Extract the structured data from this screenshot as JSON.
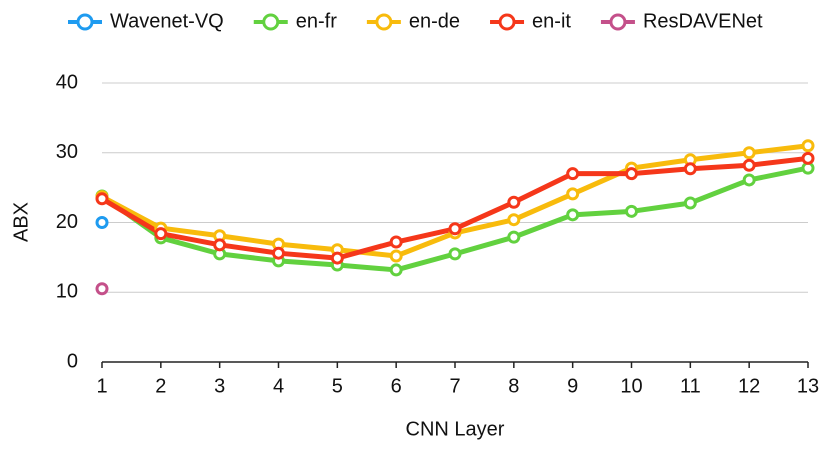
{
  "chart_data": {
    "type": "line",
    "x_label": "CNN Layer",
    "y_label": "ABX",
    "x": [
      1,
      2,
      3,
      4,
      5,
      6,
      7,
      8,
      9,
      10,
      11,
      12,
      13
    ],
    "xlim": [
      1,
      13
    ],
    "xticks": [
      1,
      2,
      3,
      4,
      5,
      6,
      7,
      8,
      9,
      10,
      11,
      12,
      13
    ],
    "ylim": [
      0,
      40
    ],
    "yticks": [
      0,
      10,
      20,
      30,
      40
    ],
    "grid": true,
    "legend": "top",
    "series": [
      {
        "name": "Wavenet-VQ",
        "color": "#1e9bf0",
        "values": [
          20,
          null,
          null,
          null,
          null,
          null,
          null,
          null,
          null,
          null,
          null,
          null,
          null
        ]
      },
      {
        "name": "en-fr",
        "color": "#62d13f",
        "values": [
          23.8,
          17.8,
          15.5,
          14.5,
          13.9,
          13.2,
          15.5,
          17.9,
          21.1,
          21.6,
          22.8,
          26.1,
          27.8
        ]
      },
      {
        "name": "en-de",
        "color": "#f8bb0c",
        "values": [
          23.7,
          19.2,
          18.1,
          16.9,
          16.1,
          15.2,
          18.5,
          20.4,
          24.1,
          27.8,
          29.0,
          30.0,
          31.0
        ]
      },
      {
        "name": "en-it",
        "color": "#f5371a",
        "values": [
          23.4,
          18.4,
          16.8,
          15.6,
          14.9,
          17.2,
          19.1,
          22.9,
          27.0,
          27.0,
          27.7,
          28.2,
          29.2
        ]
      },
      {
        "name": "ResDAVENet",
        "color": "#c4508a",
        "values": [
          10.5,
          null,
          null,
          null,
          null,
          null,
          null,
          null,
          null,
          null,
          null,
          null,
          null
        ]
      }
    ]
  }
}
